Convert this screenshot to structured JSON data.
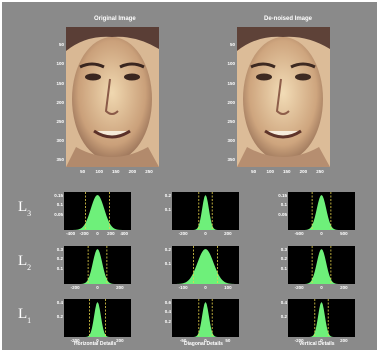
{
  "figure": {
    "background": "#8a8a8a",
    "histogram_bg": "#000000",
    "histogram_fill": "#6ef07a",
    "threshold_color": "#e6d24a"
  },
  "images": {
    "original_title": "Original Image",
    "denoised_title": "De-noised Image",
    "y_ticks": [
      "50",
      "100",
      "150",
      "200",
      "250",
      "300",
      "350"
    ],
    "x_ticks": [
      "50",
      "100",
      "150",
      "200",
      "250"
    ]
  },
  "levels": [
    {
      "base": "L",
      "sub": "3",
      "columns": [
        {
          "y_ticks": [
            "0.15",
            "0.1",
            "0.05"
          ],
          "x_ticks": [
            "-400",
            "-200",
            "0",
            "200",
            "400"
          ]
        },
        {
          "y_ticks": [
            "0.2",
            "0.1"
          ],
          "x_ticks": [
            "-200",
            "0",
            "200"
          ]
        },
        {
          "y_ticks": [
            "0.15",
            "0.1",
            "0.05"
          ],
          "x_ticks": [
            "-500",
            "0",
            "500"
          ]
        }
      ]
    },
    {
      "base": "L",
      "sub": "2",
      "columns": [
        {
          "y_ticks": [
            "0.3",
            "0.2",
            "0.1"
          ],
          "x_ticks": [
            "-200",
            "0",
            "200"
          ]
        },
        {
          "y_ticks": [
            "0.2",
            "0.1"
          ],
          "x_ticks": [
            "-100",
            "0",
            "100"
          ]
        },
        {
          "y_ticks": [
            "0.3",
            "0.2",
            "0.1"
          ],
          "x_ticks": [
            "-200",
            "0",
            "200"
          ]
        }
      ]
    },
    {
      "base": "L",
      "sub": "1",
      "columns": [
        {
          "y_ticks": [
            "0.4",
            "0.2"
          ],
          "x_ticks": [
            "-200",
            "0",
            "200"
          ]
        },
        {
          "y_ticks": [
            "0.6",
            "0.4",
            "0.2"
          ],
          "x_ticks": [
            "-50",
            "0",
            "50"
          ]
        },
        {
          "y_ticks": [
            "0.4",
            "0.2"
          ],
          "x_ticks": [
            "-200",
            "0",
            "200"
          ]
        }
      ]
    }
  ],
  "column_labels": [
    "Horizontal Details",
    "Diagonal Details",
    "Vertical Details"
  ]
}
